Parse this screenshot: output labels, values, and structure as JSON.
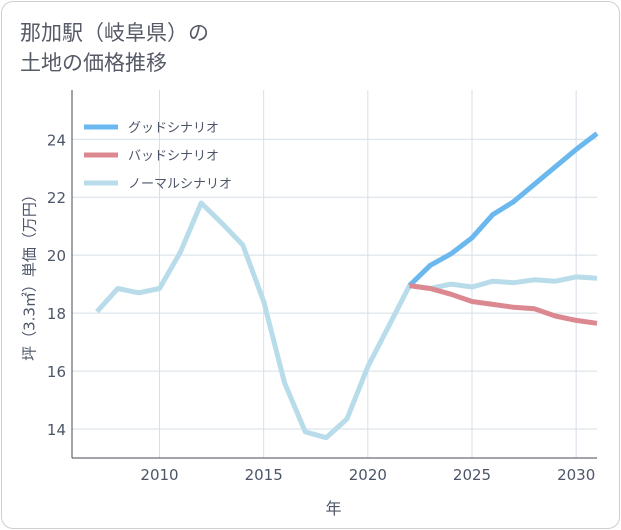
{
  "title": {
    "line1": "那加駅（岐阜県）の",
    "line2": "土地の価格推移"
  },
  "chart_data": {
    "type": "line",
    "title": "那加駅（岐阜県）の土地の価格推移",
    "xlabel": "年",
    "ylabel": "坪（3.3㎡）単価（万円）",
    "xlim": [
      2005.8,
      2031
    ],
    "ylim": [
      13.0,
      25.7
    ],
    "xticks": [
      2010,
      2015,
      2020,
      2025,
      2030
    ],
    "yticks": [
      14,
      16,
      18,
      20,
      22,
      24
    ],
    "grid": true,
    "legend_position": "top-left",
    "series": [
      {
        "name": "グッドシナリオ",
        "color": "#6ab8ee",
        "x": [
          2022,
          2023,
          2024,
          2025,
          2026,
          2027,
          2028,
          2029,
          2030,
          2031
        ],
        "y": [
          18.95,
          19.65,
          20.05,
          20.6,
          21.4,
          21.85,
          22.45,
          23.05,
          23.65,
          24.2
        ]
      },
      {
        "name": "バッドシナリオ",
        "color": "#dc8890",
        "x": [
          2022,
          2023,
          2024,
          2025,
          2026,
          2027,
          2028,
          2029,
          2030,
          2031
        ],
        "y": [
          18.95,
          18.85,
          18.65,
          18.4,
          18.3,
          18.2,
          18.15,
          17.9,
          17.75,
          17.65
        ]
      },
      {
        "name": "ノーマルシナリオ",
        "color": "#b9dcea",
        "x": [
          2007,
          2008,
          2009,
          2010,
          2011,
          2012,
          2013,
          2014,
          2015,
          2016,
          2017,
          2018,
          2019,
          2020,
          2021,
          2022,
          2023,
          2024,
          2025,
          2026,
          2027,
          2028,
          2029,
          2030,
          2031
        ],
        "y": [
          18.05,
          18.85,
          18.7,
          18.85,
          20.1,
          21.8,
          21.1,
          20.35,
          18.4,
          15.6,
          13.9,
          13.7,
          14.35,
          16.15,
          17.55,
          18.95,
          18.85,
          19.0,
          18.9,
          19.1,
          19.05,
          19.15,
          19.1,
          19.25,
          19.2
        ]
      }
    ]
  }
}
